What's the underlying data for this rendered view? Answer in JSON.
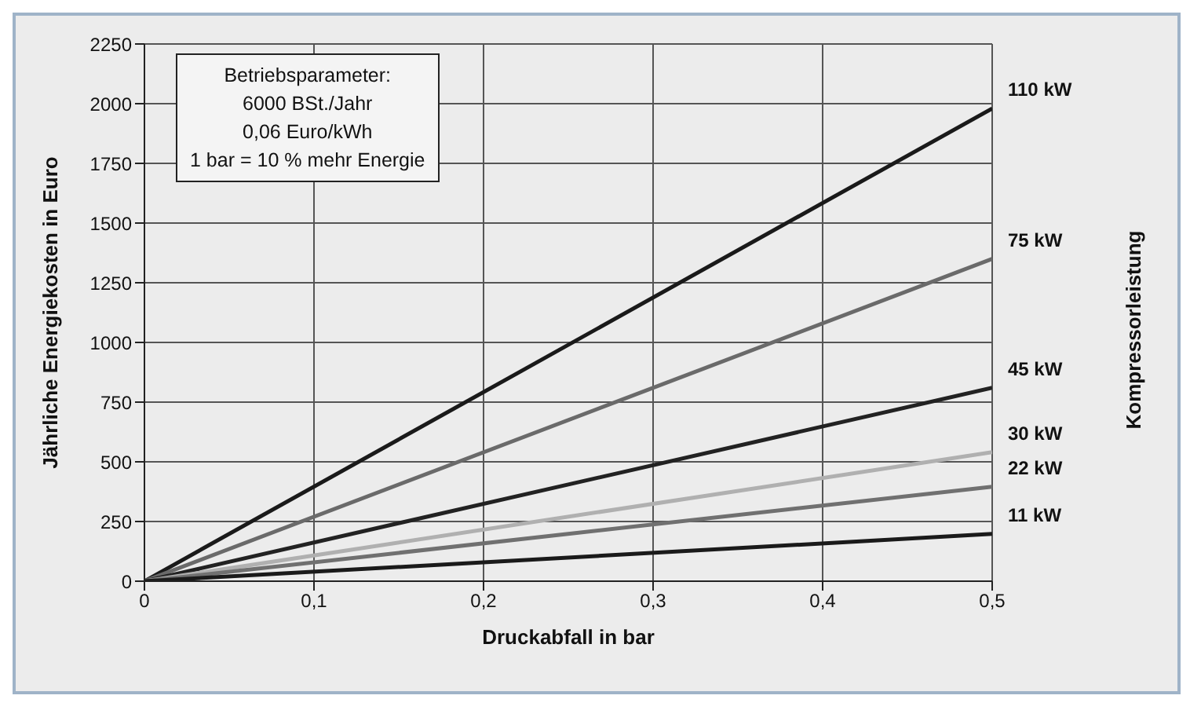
{
  "chart_data": {
    "type": "line",
    "xlabel": "Druckabfall in bar",
    "ylabel": "Jährliche Energiekosten in Euro",
    "annotations": [
      "Betriebsparameter:\n6000 BSt./Jahr\n0,06 Euro/kWh\n1 bar = 10 % mehr Energie",
      "Kompressorleistung"
    ],
    "x": [
      0,
      0.5
    ],
    "series": [
      {
        "name": "110 kW",
        "color": "#1a1a1a",
        "values": [
          0,
          1980
        ]
      },
      {
        "name": "75 kW",
        "color": "#6a6a6a",
        "values": [
          0,
          1350
        ]
      },
      {
        "name": "45 kW",
        "color": "#222222",
        "values": [
          0,
          810
        ]
      },
      {
        "name": "30 kW",
        "color": "#b0b0b0",
        "values": [
          0,
          540
        ]
      },
      {
        "name": "22 kW",
        "color": "#707070",
        "values": [
          0,
          396
        ]
      },
      {
        "name": "11 kW",
        "color": "#1a1a1a",
        "values": [
          0,
          198
        ]
      }
    ],
    "xlim": [
      0,
      0.5
    ],
    "xticks": [
      0,
      {
        "value": 0.1,
        "label": "0,1"
      },
      {
        "value": 0.2,
        "label": "0,2"
      },
      {
        "value": 0.3,
        "label": "0,3"
      },
      {
        "value": 0.4,
        "label": "0,4"
      },
      {
        "value": 0.5,
        "label": "0,5"
      }
    ],
    "ylim": [
      0,
      2250
    ],
    "yticks": [
      0,
      250,
      500,
      750,
      1000,
      1250,
      1500,
      1750,
      2000,
      2250
    ],
    "grid": true,
    "marker": "none",
    "line_style": "solid"
  }
}
